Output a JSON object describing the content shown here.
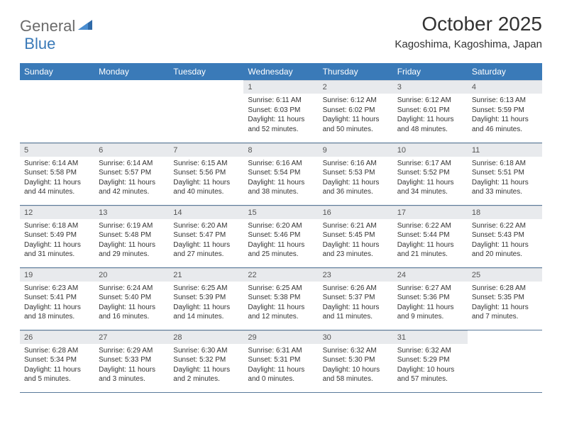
{
  "logo": {
    "part1": "General",
    "part2": "Blue"
  },
  "title": "October 2025",
  "location": "Kagoshima, Kagoshima, Japan",
  "colors": {
    "header_bg": "#3a7ab8",
    "header_text": "#ffffff",
    "daynum_bg": "#e8eaed",
    "border": "#5a7a9a",
    "logo_gray": "#6b6b6b",
    "logo_blue": "#3a7ab8"
  },
  "weekdays": [
    "Sunday",
    "Monday",
    "Tuesday",
    "Wednesday",
    "Thursday",
    "Friday",
    "Saturday"
  ],
  "weeks": [
    [
      {
        "num": "",
        "sunrise": "",
        "sunset": "",
        "daylight": ""
      },
      {
        "num": "",
        "sunrise": "",
        "sunset": "",
        "daylight": ""
      },
      {
        "num": "",
        "sunrise": "",
        "sunset": "",
        "daylight": ""
      },
      {
        "num": "1",
        "sunrise": "Sunrise: 6:11 AM",
        "sunset": "Sunset: 6:03 PM",
        "daylight": "Daylight: 11 hours and 52 minutes."
      },
      {
        "num": "2",
        "sunrise": "Sunrise: 6:12 AM",
        "sunset": "Sunset: 6:02 PM",
        "daylight": "Daylight: 11 hours and 50 minutes."
      },
      {
        "num": "3",
        "sunrise": "Sunrise: 6:12 AM",
        "sunset": "Sunset: 6:01 PM",
        "daylight": "Daylight: 11 hours and 48 minutes."
      },
      {
        "num": "4",
        "sunrise": "Sunrise: 6:13 AM",
        "sunset": "Sunset: 5:59 PM",
        "daylight": "Daylight: 11 hours and 46 minutes."
      }
    ],
    [
      {
        "num": "5",
        "sunrise": "Sunrise: 6:14 AM",
        "sunset": "Sunset: 5:58 PM",
        "daylight": "Daylight: 11 hours and 44 minutes."
      },
      {
        "num": "6",
        "sunrise": "Sunrise: 6:14 AM",
        "sunset": "Sunset: 5:57 PM",
        "daylight": "Daylight: 11 hours and 42 minutes."
      },
      {
        "num": "7",
        "sunrise": "Sunrise: 6:15 AM",
        "sunset": "Sunset: 5:56 PM",
        "daylight": "Daylight: 11 hours and 40 minutes."
      },
      {
        "num": "8",
        "sunrise": "Sunrise: 6:16 AM",
        "sunset": "Sunset: 5:54 PM",
        "daylight": "Daylight: 11 hours and 38 minutes."
      },
      {
        "num": "9",
        "sunrise": "Sunrise: 6:16 AM",
        "sunset": "Sunset: 5:53 PM",
        "daylight": "Daylight: 11 hours and 36 minutes."
      },
      {
        "num": "10",
        "sunrise": "Sunrise: 6:17 AM",
        "sunset": "Sunset: 5:52 PM",
        "daylight": "Daylight: 11 hours and 34 minutes."
      },
      {
        "num": "11",
        "sunrise": "Sunrise: 6:18 AM",
        "sunset": "Sunset: 5:51 PM",
        "daylight": "Daylight: 11 hours and 33 minutes."
      }
    ],
    [
      {
        "num": "12",
        "sunrise": "Sunrise: 6:18 AM",
        "sunset": "Sunset: 5:49 PM",
        "daylight": "Daylight: 11 hours and 31 minutes."
      },
      {
        "num": "13",
        "sunrise": "Sunrise: 6:19 AM",
        "sunset": "Sunset: 5:48 PM",
        "daylight": "Daylight: 11 hours and 29 minutes."
      },
      {
        "num": "14",
        "sunrise": "Sunrise: 6:20 AM",
        "sunset": "Sunset: 5:47 PM",
        "daylight": "Daylight: 11 hours and 27 minutes."
      },
      {
        "num": "15",
        "sunrise": "Sunrise: 6:20 AM",
        "sunset": "Sunset: 5:46 PM",
        "daylight": "Daylight: 11 hours and 25 minutes."
      },
      {
        "num": "16",
        "sunrise": "Sunrise: 6:21 AM",
        "sunset": "Sunset: 5:45 PM",
        "daylight": "Daylight: 11 hours and 23 minutes."
      },
      {
        "num": "17",
        "sunrise": "Sunrise: 6:22 AM",
        "sunset": "Sunset: 5:44 PM",
        "daylight": "Daylight: 11 hours and 21 minutes."
      },
      {
        "num": "18",
        "sunrise": "Sunrise: 6:22 AM",
        "sunset": "Sunset: 5:43 PM",
        "daylight": "Daylight: 11 hours and 20 minutes."
      }
    ],
    [
      {
        "num": "19",
        "sunrise": "Sunrise: 6:23 AM",
        "sunset": "Sunset: 5:41 PM",
        "daylight": "Daylight: 11 hours and 18 minutes."
      },
      {
        "num": "20",
        "sunrise": "Sunrise: 6:24 AM",
        "sunset": "Sunset: 5:40 PM",
        "daylight": "Daylight: 11 hours and 16 minutes."
      },
      {
        "num": "21",
        "sunrise": "Sunrise: 6:25 AM",
        "sunset": "Sunset: 5:39 PM",
        "daylight": "Daylight: 11 hours and 14 minutes."
      },
      {
        "num": "22",
        "sunrise": "Sunrise: 6:25 AM",
        "sunset": "Sunset: 5:38 PM",
        "daylight": "Daylight: 11 hours and 12 minutes."
      },
      {
        "num": "23",
        "sunrise": "Sunrise: 6:26 AM",
        "sunset": "Sunset: 5:37 PM",
        "daylight": "Daylight: 11 hours and 11 minutes."
      },
      {
        "num": "24",
        "sunrise": "Sunrise: 6:27 AM",
        "sunset": "Sunset: 5:36 PM",
        "daylight": "Daylight: 11 hours and 9 minutes."
      },
      {
        "num": "25",
        "sunrise": "Sunrise: 6:28 AM",
        "sunset": "Sunset: 5:35 PM",
        "daylight": "Daylight: 11 hours and 7 minutes."
      }
    ],
    [
      {
        "num": "26",
        "sunrise": "Sunrise: 6:28 AM",
        "sunset": "Sunset: 5:34 PM",
        "daylight": "Daylight: 11 hours and 5 minutes."
      },
      {
        "num": "27",
        "sunrise": "Sunrise: 6:29 AM",
        "sunset": "Sunset: 5:33 PM",
        "daylight": "Daylight: 11 hours and 3 minutes."
      },
      {
        "num": "28",
        "sunrise": "Sunrise: 6:30 AM",
        "sunset": "Sunset: 5:32 PM",
        "daylight": "Daylight: 11 hours and 2 minutes."
      },
      {
        "num": "29",
        "sunrise": "Sunrise: 6:31 AM",
        "sunset": "Sunset: 5:31 PM",
        "daylight": "Daylight: 11 hours and 0 minutes."
      },
      {
        "num": "30",
        "sunrise": "Sunrise: 6:32 AM",
        "sunset": "Sunset: 5:30 PM",
        "daylight": "Daylight: 10 hours and 58 minutes."
      },
      {
        "num": "31",
        "sunrise": "Sunrise: 6:32 AM",
        "sunset": "Sunset: 5:29 PM",
        "daylight": "Daylight: 10 hours and 57 minutes."
      },
      {
        "num": "",
        "sunrise": "",
        "sunset": "",
        "daylight": ""
      }
    ]
  ]
}
